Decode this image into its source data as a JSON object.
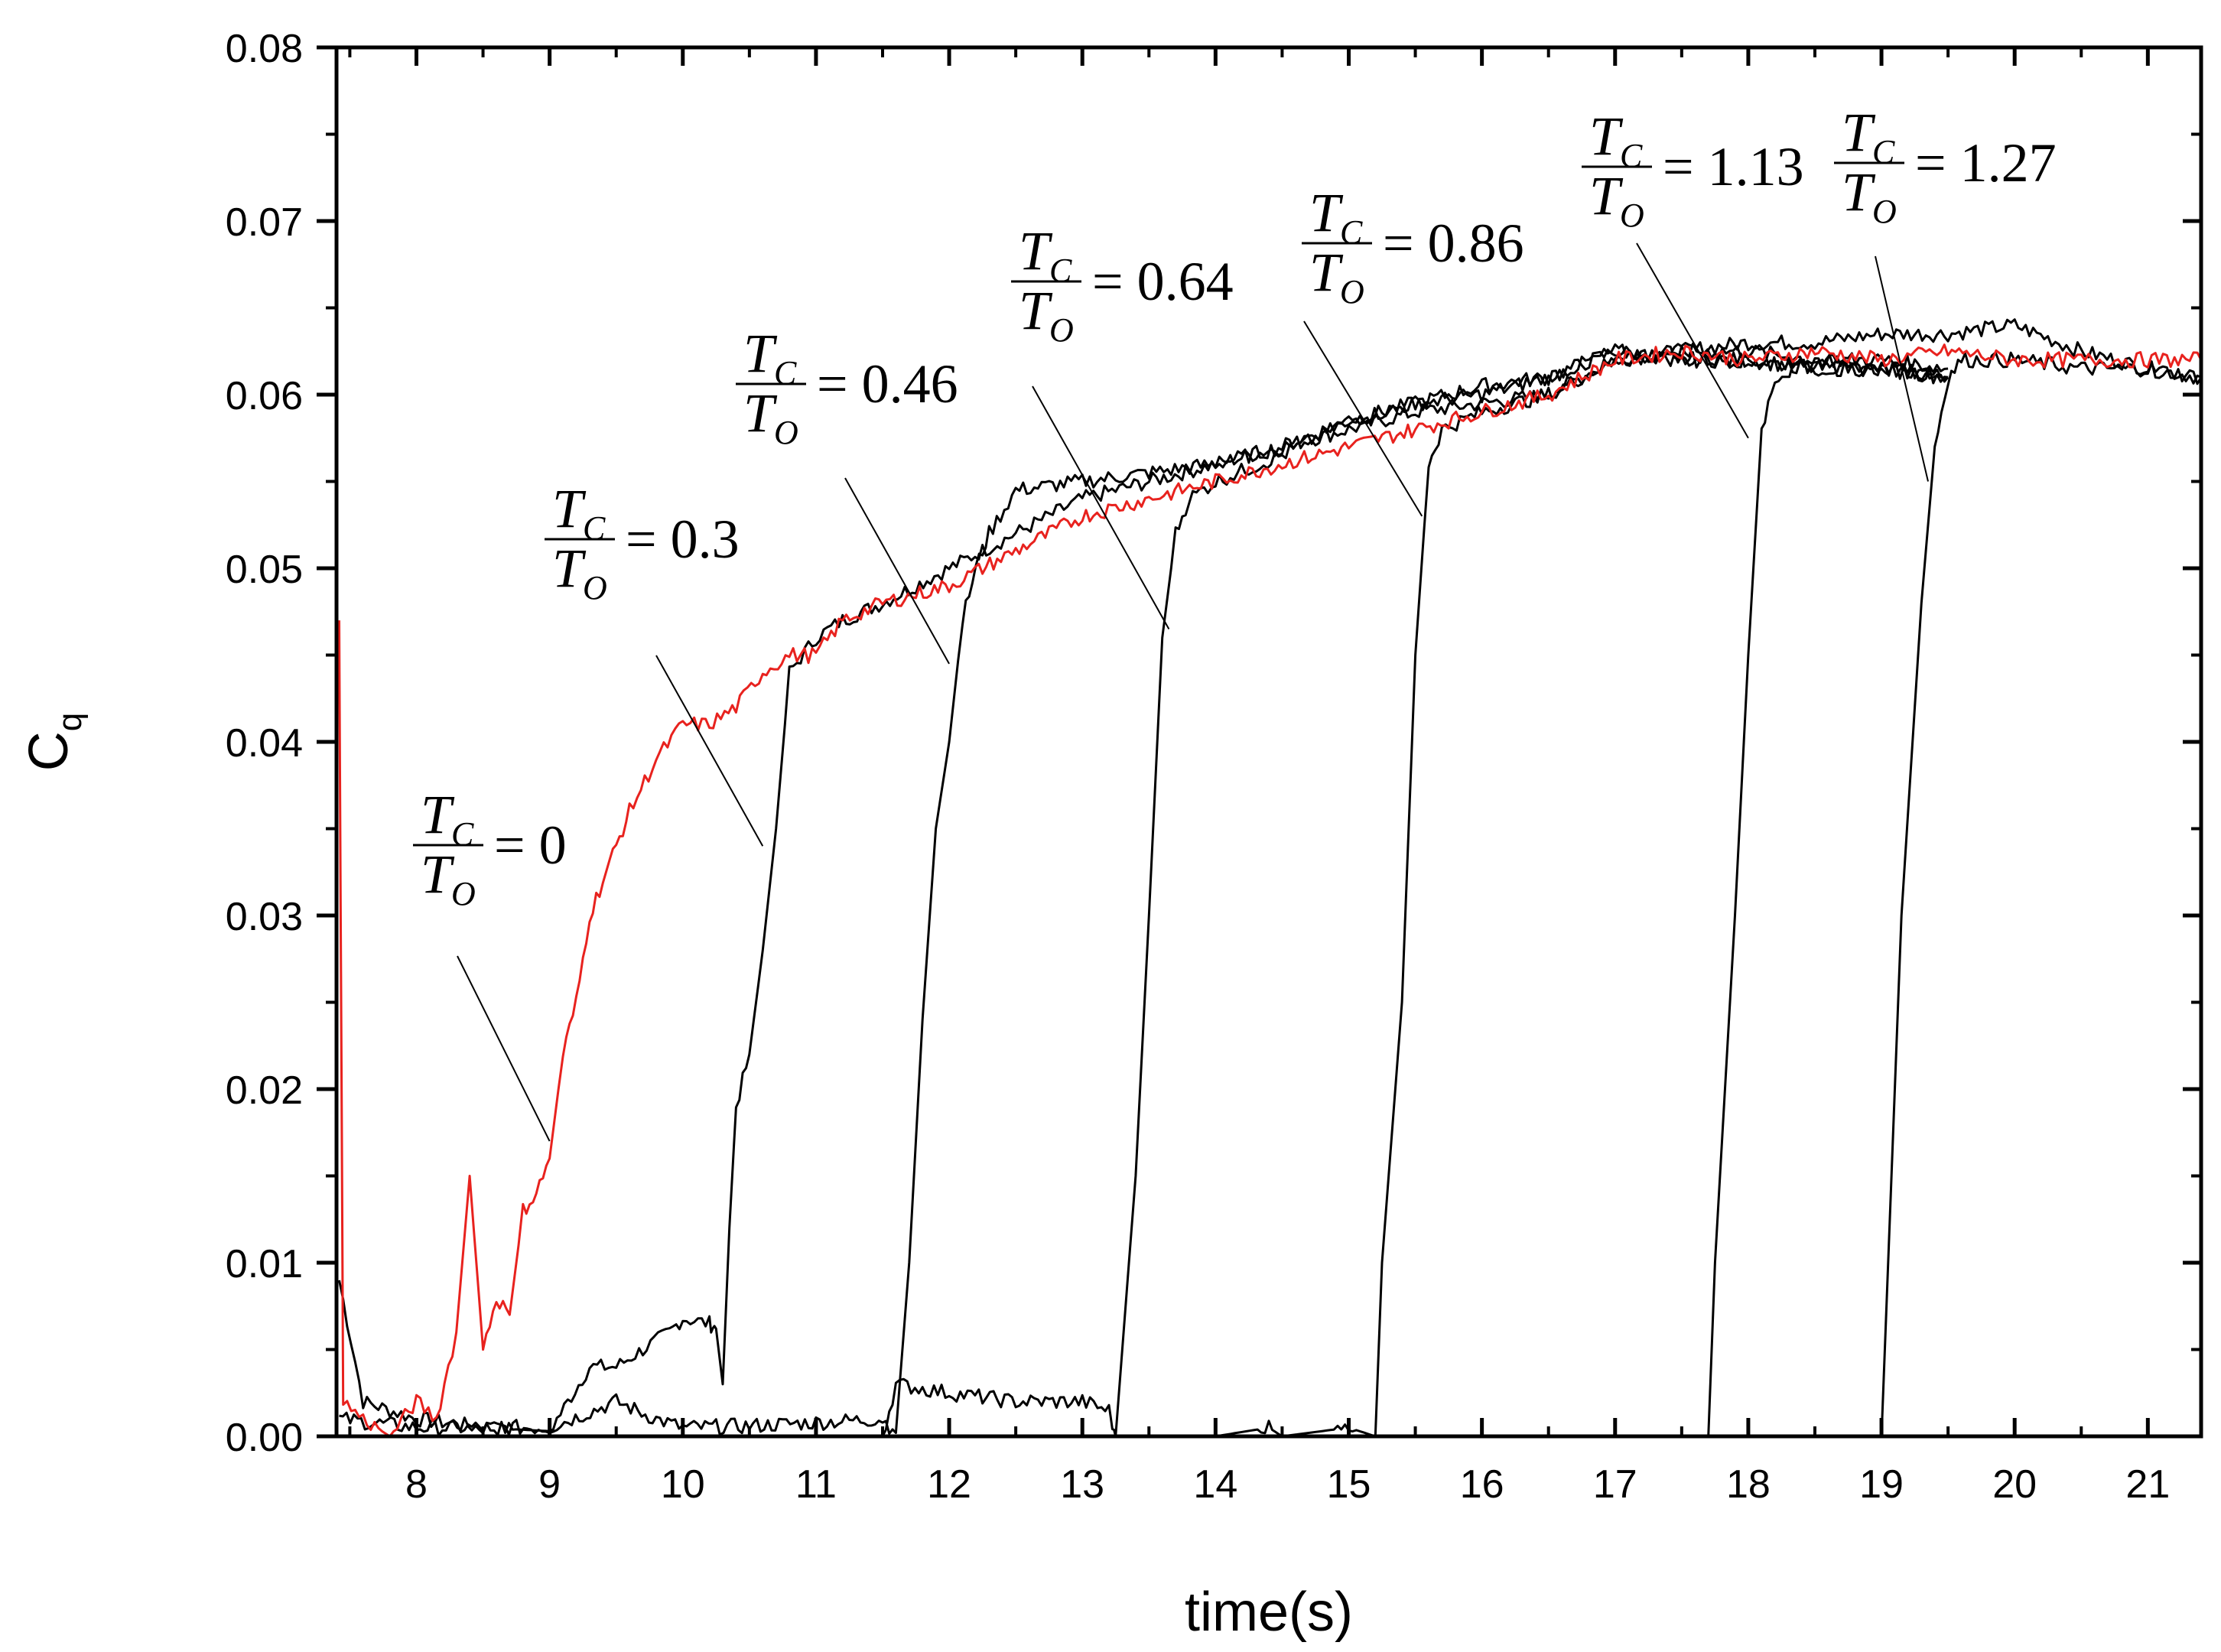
{
  "chart_data": {
    "type": "line",
    "title": "",
    "xlabel": "time(s)",
    "ylabel": "C",
    "ylabel_sub": "q",
    "xlim": [
      7.4,
      21.4
    ],
    "ylim": [
      0.0,
      0.08
    ],
    "x_ticks": [
      8,
      9,
      10,
      11,
      12,
      13,
      14,
      15,
      16,
      17,
      18,
      19,
      20,
      21
    ],
    "x_tick_labels": [
      "8",
      "9",
      "10",
      "11",
      "12",
      "13",
      "14",
      "15",
      "16",
      "17",
      "18",
      "19",
      "20",
      "21"
    ],
    "y_ticks": [
      0.0,
      0.01,
      0.02,
      0.03,
      0.04,
      0.05,
      0.06,
      0.07,
      0.08
    ],
    "y_tick_labels": [
      "0.00",
      "0.01",
      "0.02",
      "0.03",
      "0.04",
      "0.05",
      "0.06",
      "0.07",
      "0.08"
    ],
    "grid": false,
    "series": [
      {
        "name": "TC/TO = 0",
        "color": "#e8221e",
        "x": [
          7.42,
          7.45,
          7.6,
          7.8,
          8.0,
          8.15,
          8.3,
          8.4,
          8.5,
          8.6,
          8.7,
          8.8,
          8.9,
          9.0,
          9.1,
          9.2,
          9.3,
          9.4,
          9.5,
          9.6,
          9.8,
          10.0,
          10.2,
          10.4,
          10.6,
          10.8,
          11.0,
          11.2,
          11.5,
          12.0,
          12.5,
          13.0,
          13.5,
          14.0,
          14.5,
          15.0,
          15.5,
          16.0,
          16.5,
          17.0,
          17.5,
          18.0,
          18.5,
          19.0,
          19.5,
          20.0,
          20.5,
          21.0,
          21.4
        ],
        "y": [
          0.047,
          0.002,
          0.001,
          0.0,
          0.002,
          0.001,
          0.006,
          0.015,
          0.005,
          0.008,
          0.007,
          0.013,
          0.014,
          0.016,
          0.022,
          0.025,
          0.03,
          0.032,
          0.034,
          0.036,
          0.039,
          0.041,
          0.041,
          0.042,
          0.044,
          0.045,
          0.045,
          0.047,
          0.048,
          0.049,
          0.051,
          0.053,
          0.054,
          0.055,
          0.056,
          0.057,
          0.058,
          0.059,
          0.06,
          0.062,
          0.0625,
          0.062,
          0.0625,
          0.062,
          0.0625,
          0.062,
          0.062,
          0.062,
          0.062
        ]
      },
      {
        "name": "TC/TO = 0.3",
        "color": "#000000",
        "x": [
          7.42,
          7.6,
          8.0,
          8.5,
          9.0,
          9.3,
          9.5,
          9.7,
          9.9,
          10.0,
          10.2,
          10.25,
          10.3,
          10.35,
          10.4,
          10.5,
          10.6,
          10.7,
          10.8,
          11.0,
          11.2,
          11.5,
          12.0,
          12.5,
          13.0,
          13.5,
          14.0,
          14.5,
          15.0,
          15.5,
          16.0,
          16.5,
          17.0,
          17.5,
          18.0,
          18.5,
          19.0,
          19.5,
          20.0,
          20.5,
          21.0,
          21.4
        ],
        "y": [
          0.009,
          0.002,
          0.001,
          0.0005,
          0.0003,
          0.004,
          0.004,
          0.005,
          0.006,
          0.0068,
          0.0065,
          0.0062,
          0.003,
          0.012,
          0.019,
          0.022,
          0.028,
          0.035,
          0.044,
          0.046,
          0.047,
          0.048,
          0.05,
          0.052,
          0.054,
          0.055,
          0.056,
          0.057,
          0.058,
          0.059,
          0.0595,
          0.06,
          0.062,
          0.0625,
          0.063,
          0.063,
          0.0635,
          0.0635,
          0.064,
          0.0625,
          0.0615,
          0.061
        ]
      },
      {
        "name": "TC/TO = 0.46",
        "color": "#000000",
        "x": [
          7.42,
          8.0,
          9.0,
          9.5,
          9.8,
          10.0,
          10.5,
          11.0,
          11.5,
          11.6,
          11.7,
          11.8,
          11.9,
          12.0,
          12.1,
          12.2,
          12.3,
          12.5,
          13.0,
          13.5,
          14.0,
          14.5,
          15.0,
          15.5,
          16.0,
          16.5,
          17.0,
          17.5,
          18.0,
          18.5,
          19.0,
          19.5
        ],
        "y": [
          0.001,
          0.0005,
          0.0005,
          0.002,
          0.001,
          0.0005,
          0.0006,
          0.0008,
          0.001,
          0.0002,
          0.01,
          0.024,
          0.035,
          0.04,
          0.047,
          0.05,
          0.052,
          0.0545,
          0.055,
          0.0555,
          0.056,
          0.057,
          0.0585,
          0.0595,
          0.0605,
          0.061,
          0.0625,
          0.062,
          0.062,
          0.0615,
          0.0615,
          0.061
        ]
      },
      {
        "name": "TC/TO = 0.64",
        "color": "#000000",
        "x": [
          7.42,
          8.0,
          10.0,
          11.0,
          11.5,
          11.6,
          12.0,
          12.5,
          13.0,
          13.2,
          13.25,
          13.4,
          13.5,
          13.6,
          13.7,
          13.8,
          14.0,
          14.5,
          15.0,
          15.5,
          16.0,
          16.5,
          17.0,
          17.5,
          18.0,
          18.5,
          19.0,
          19.5
        ],
        "y": [
          0.0,
          0.0,
          0.0,
          0.0,
          0.0,
          0.003,
          0.0025,
          0.002,
          0.002,
          0.0015,
          0.0,
          0.015,
          0.03,
          0.046,
          0.052,
          0.054,
          0.055,
          0.0565,
          0.0585,
          0.0595,
          0.06,
          0.061,
          0.0625,
          0.062,
          0.062,
          0.0615,
          0.0615,
          0.061
        ]
      },
      {
        "name": "TC/TO = 0.86",
        "color": "#000000",
        "x": [
          7.42,
          10.0,
          12.0,
          14.0,
          14.4,
          14.5,
          15.0,
          15.2,
          15.25,
          15.4,
          15.5,
          15.6,
          15.7,
          16.0,
          16.5,
          17.0,
          17.5,
          18.0,
          18.5,
          19.0,
          19.5
        ],
        "y": [
          0.0,
          0.0,
          0.0,
          0.0,
          0.0005,
          0.0,
          0.0005,
          0.0,
          0.01,
          0.025,
          0.045,
          0.056,
          0.058,
          0.059,
          0.06,
          0.062,
          0.0625,
          0.0625,
          0.062,
          0.0615,
          0.061
        ]
      },
      {
        "name": "TC/TO = 1.13",
        "color": "#000000",
        "x": [
          7.42,
          10.0,
          14.0,
          17.0,
          17.7,
          17.75,
          17.9,
          18.0,
          18.1,
          18.2,
          18.5,
          19.0,
          19.5
        ],
        "y": [
          0.0,
          0.0,
          0.0,
          0.0,
          0.0,
          0.01,
          0.03,
          0.045,
          0.058,
          0.061,
          0.062,
          0.062,
          0.0615
        ]
      },
      {
        "name": "TC/TO = 1.27",
        "color": "#000000",
        "x": [
          7.42,
          12.0,
          17.0,
          19.0,
          19.05,
          19.15,
          19.3,
          19.4,
          19.5,
          19.6,
          20.0,
          20.5,
          21.0,
          21.4
        ],
        "y": [
          0.0,
          0.0,
          0.0,
          0.0,
          0.01,
          0.03,
          0.048,
          0.057,
          0.061,
          0.062,
          0.062,
          0.0615,
          0.0615,
          0.061
        ]
      }
    ],
    "annotations": [
      {
        "num": "T",
        "num_sub": "C",
        "den": "T",
        "den_sub": "O",
        "value": "= 0",
        "arrow_to": [
          9.0,
          0.017
        ]
      },
      {
        "num": "T",
        "num_sub": "C",
        "den": "T",
        "den_sub": "O",
        "value": "= 0.3",
        "arrow_to": [
          10.6,
          0.034
        ]
      },
      {
        "num": "T",
        "num_sub": "C",
        "den": "T",
        "den_sub": "O",
        "value": "= 0.46",
        "arrow_to": [
          12.0,
          0.0445
        ]
      },
      {
        "num": "T",
        "num_sub": "C",
        "den": "T",
        "den_sub": "O",
        "value": "= 0.64",
        "arrow_to": [
          13.65,
          0.0465
        ]
      },
      {
        "num": "T",
        "num_sub": "C",
        "den": "T",
        "den_sub": "O",
        "value": "= 0.86",
        "arrow_to": [
          15.55,
          0.053
        ]
      },
      {
        "num": "T",
        "num_sub": "C",
        "den": "T",
        "den_sub": "O",
        "value": "= 1.13",
        "arrow_to": [
          18.0,
          0.0575
        ]
      },
      {
        "num": "T",
        "num_sub": "C",
        "den": "T",
        "den_sub": "O",
        "value": "= 1.27",
        "arrow_to": [
          19.35,
          0.055
        ]
      }
    ]
  }
}
